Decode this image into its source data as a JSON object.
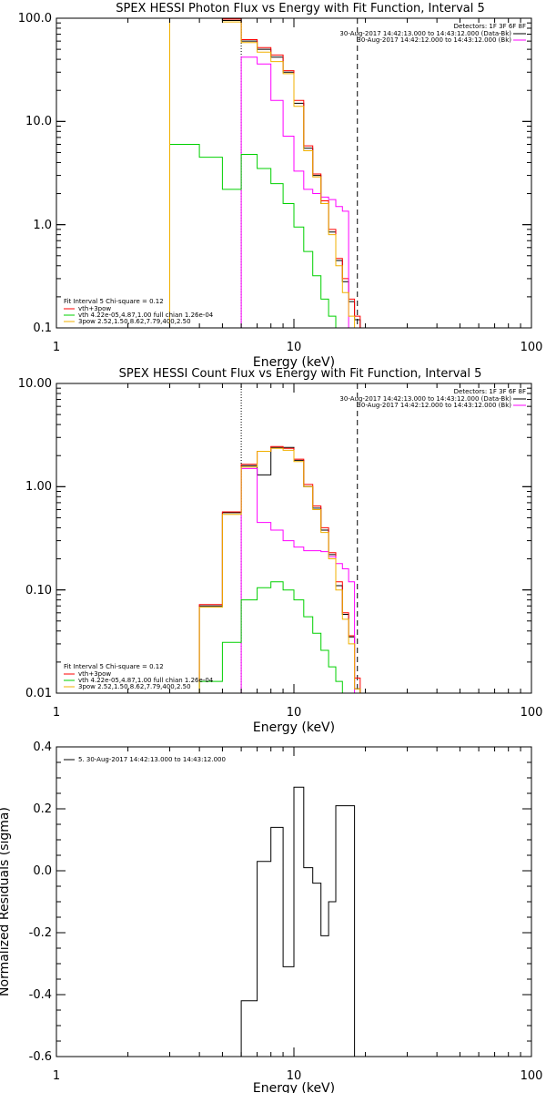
{
  "chart_data": [
    {
      "type": "line",
      "title": "SPEX HESSI Photon Flux vs Energy with Fit Function, Interval 5",
      "xlabel": "Energy (keV)",
      "ylabel": "",
      "xscale": "log",
      "yscale": "log",
      "xlim": [
        1,
        100
      ],
      "ylim": [
        0.1,
        100
      ],
      "xticks": [
        "1",
        "10",
        "100"
      ],
      "yticks": [
        "0.1",
        "1.0",
        "10.0",
        "100.0"
      ],
      "edges": [
        3,
        4,
        5,
        6,
        7,
        8,
        9,
        10,
        11,
        12,
        13,
        14,
        15,
        16,
        17,
        18,
        19,
        20
      ],
      "series": [
        {
          "name": "",
          "color": "#000000",
          "values": [
            100,
            100,
            95,
            60,
            50,
            42,
            30,
            15,
            5.5,
            3.0,
            1.6,
            0.85,
            0.45,
            0.28,
            0.18,
            0.12,
            0.1
          ]
        },
        {
          "name": "",
          "color": "#ff0000",
          "values": [
            100,
            100,
            98,
            62,
            52,
            44,
            31,
            16,
            5.8,
            3.1,
            1.7,
            0.9,
            0.47,
            0.3,
            0.19,
            0.13,
            0.1
          ]
        },
        {
          "name": "",
          "color": "#ff00ff",
          "values": [
            null,
            null,
            null,
            42,
            36,
            16,
            7.2,
            3.3,
            2.2,
            2.0,
            1.85,
            1.75,
            1.5,
            1.35,
            null,
            null,
            null
          ]
        },
        {
          "name": "",
          "color": "#00d000",
          "values": [
            6.0,
            4.5,
            2.2,
            4.8,
            3.5,
            2.5,
            1.6,
            0.95,
            0.55,
            0.32,
            0.19,
            0.13,
            0.1,
            null,
            null,
            null,
            null
          ]
        },
        {
          "name": "",
          "color": "#f0b000",
          "values": [
            100,
            100,
            92,
            58,
            47,
            38,
            29,
            14,
            5.2,
            2.9,
            1.6,
            0.8,
            0.4,
            0.22,
            0.13,
            null,
            null
          ]
        }
      ],
      "markers": [
        {
          "x": 6,
          "style": "dotted"
        },
        {
          "x": 18.5,
          "style": "dashed"
        }
      ],
      "detectors_label": "Detectors: 1F 3F 6F 8F",
      "time_legend": [
        {
          "text": "30-Aug-2017 14:42:13.000 to 14:43:12.000 (Data-Bk)",
          "color": "#000000"
        },
        {
          "text": "30-Aug-2017 14:42:12.000 to 14:43:12.000 (Bk)",
          "color": "#ff00ff"
        }
      ],
      "fit_legend": {
        "header": "Fit Interval 5   Chi-square = 0.12",
        "items": [
          {
            "text": "vth+3pow",
            "color": "#ff0000"
          },
          {
            "text": "vth 4.22e-05,4.87,1.00   full chian 1.26e-04",
            "color": "#00d000"
          },
          {
            "text": "3pow 2.52,1.50,8.62,7.79,400,2.50",
            "color": "#f0b000"
          }
        ]
      }
    },
    {
      "type": "line",
      "title": "SPEX HESSI Count Flux vs Energy with Fit Function, Interval 5",
      "xlabel": "Energy (keV)",
      "ylabel": "",
      "xscale": "log",
      "yscale": "log",
      "xlim": [
        1,
        100
      ],
      "ylim": [
        0.01,
        10
      ],
      "xticks": [
        "1",
        "10",
        "100"
      ],
      "yticks": [
        "0.01",
        "0.10",
        "1.00",
        "10.00"
      ],
      "edges": [
        4,
        5,
        6,
        7,
        8,
        9,
        10,
        11,
        12,
        13,
        14,
        15,
        16,
        17,
        18,
        19,
        20
      ],
      "series": [
        {
          "name": "",
          "color": "#000000",
          "values": [
            0.07,
            0.56,
            1.6,
            1.3,
            2.4,
            2.4,
            1.8,
            1.0,
            0.62,
            0.38,
            0.22,
            0.11,
            0.058,
            0.035,
            0.011,
            0.01
          ]
        },
        {
          "name": "",
          "color": "#ff0000",
          "values": [
            0.072,
            0.57,
            1.65,
            2.2,
            2.45,
            2.35,
            1.85,
            1.05,
            0.65,
            0.4,
            0.23,
            0.12,
            0.06,
            0.036,
            0.014,
            0.01
          ]
        },
        {
          "name": "",
          "color": "#ff00ff",
          "values": [
            null,
            null,
            1.5,
            0.45,
            0.38,
            0.3,
            0.26,
            0.24,
            0.24,
            0.235,
            0.21,
            0.18,
            0.16,
            0.12,
            null,
            null
          ]
        },
        {
          "name": "",
          "color": "#00d000",
          "values": [
            0.013,
            0.031,
            0.08,
            0.105,
            0.12,
            0.1,
            0.08,
            0.055,
            0.038,
            0.026,
            0.018,
            0.013,
            0.01,
            null,
            null,
            null
          ]
        },
        {
          "name": "",
          "color": "#f0b000",
          "values": [
            0.068,
            0.54,
            1.55,
            2.2,
            2.35,
            2.25,
            1.75,
            1.0,
            0.6,
            0.36,
            0.2,
            0.1,
            0.052,
            0.03,
            0.011,
            null
          ]
        }
      ],
      "markers": [
        {
          "x": 6,
          "style": "dotted"
        },
        {
          "x": 18.5,
          "style": "dashed"
        }
      ],
      "detectors_label": "Detectors: 1F 3F 6F 8F",
      "time_legend": [
        {
          "text": "30-Aug-2017 14:42:13.000 to 14:43:12.000 (Data-Bk)",
          "color": "#000000"
        },
        {
          "text": "30-Aug-2017 14:42:12.000 to 14:43:12.000 (Bk)",
          "color": "#ff00ff"
        }
      ],
      "fit_legend": {
        "header": "Fit Interval 5   Chi-square = 0.12",
        "items": [
          {
            "text": "vth+3pow",
            "color": "#ff0000"
          },
          {
            "text": "vth 4.22e-05,4.87,1.00   full chian 1.26e-04",
            "color": "#00d000"
          },
          {
            "text": "3pow 2.52,1.50,8.62,7.79,400,2.50",
            "color": "#f0b000"
          }
        ]
      }
    },
    {
      "type": "line",
      "title": "",
      "xlabel": "Energy (keV)",
      "ylabel": "Normalized Residuals (sigma)",
      "xscale": "log",
      "yscale": "linear",
      "xlim": [
        1,
        100
      ],
      "ylim": [
        -0.6,
        0.4
      ],
      "xticks": [
        "1",
        "10",
        "100"
      ],
      "yticks": [
        "-0.6",
        "-0.4",
        "-0.2",
        "0.0",
        "0.2",
        "0.4"
      ],
      "edges": [
        6,
        7,
        8,
        9,
        10,
        11,
        12,
        13,
        14,
        15,
        16,
        17,
        18,
        18.5
      ],
      "series": [
        {
          "name": "",
          "color": "#000000",
          "values": [
            -0.42,
            0.03,
            0.14,
            -0.31,
            0.27,
            0.01,
            -0.04,
            -0.21,
            -0.1,
            0.21,
            0.21,
            0.21,
            -0.6
          ]
        }
      ],
      "legend": [
        {
          "text": "5. 30-Aug-2017 14:42:13.000 to 14:43:12.000",
          "color": "#000000"
        }
      ]
    }
  ]
}
